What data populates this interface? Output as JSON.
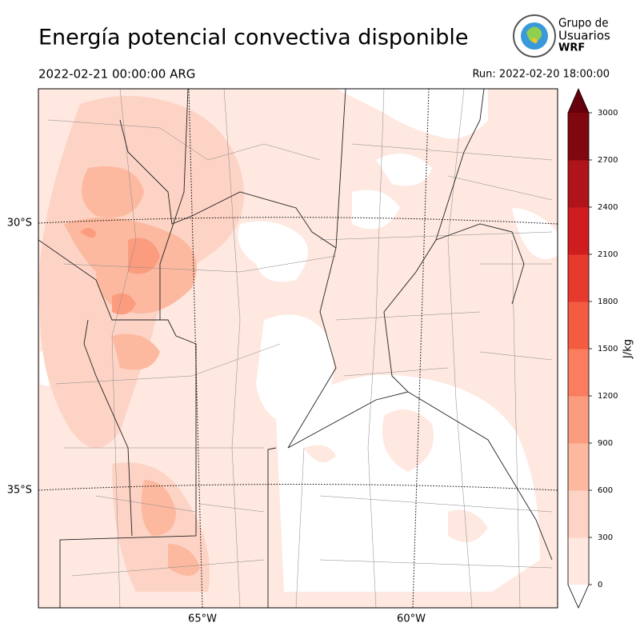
{
  "header": {
    "title": "Energía potencial convectiva disponible",
    "valid_time": "2022-02-21 00:00:00 ARG",
    "run": "Run: 2022-02-20 18:00:00"
  },
  "logo": {
    "line1": "Grupo de",
    "line2": "Usuarios",
    "line3": "WRF"
  },
  "map": {
    "lat_labels": [
      "30°S",
      "35°S"
    ],
    "lon_labels": [
      "65°W",
      "60°W"
    ]
  },
  "colorbar": {
    "label": "J/kg",
    "lim": [
      0,
      3000
    ],
    "ticks": [
      0,
      300,
      600,
      900,
      1200,
      1500,
      1800,
      2100,
      2400,
      2700,
      3000
    ],
    "colors": [
      "#fee8e0",
      "#fdd3c5",
      "#fcb99f",
      "#fc9c7f",
      "#fb7d5f",
      "#f45c42",
      "#e73a2f",
      "#cf1d1f",
      "#b0141b",
      "#7f0810"
    ],
    "over_color": "#67000d",
    "under_color": "#ffffff"
  }
}
